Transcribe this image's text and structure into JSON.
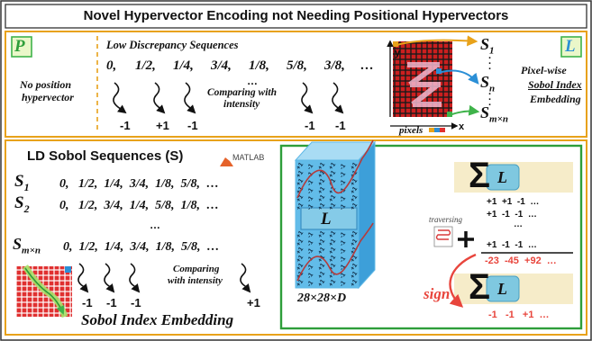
{
  "title": "Novel Hypervector Encoding not Needing Positional Hypervectors",
  "top": {
    "p_badge": "P",
    "no_position": "No position",
    "hypervector": "hypervector",
    "ld_label": "Low Discrepancy Sequences",
    "sequence": [
      "0,",
      "1/2,",
      "1/4,",
      "3/4,",
      "1/8,",
      "5/8,",
      "3/8,",
      "…"
    ],
    "ellipsis_mid": "…",
    "comparing_1": "Comparing with",
    "comparing_2": "intensity",
    "signs": [
      "-1",
      "+1",
      "-1",
      "-1",
      "-1"
    ],
    "y_axis": "y",
    "x_axis": "x",
    "pixels_label": "pixels",
    "s1": "S",
    "s1_sub": "1",
    "sn": "S",
    "sn_sub": "n",
    "smn": "S",
    "smn_sub": "m×n",
    "l_badge": "L",
    "pixelwise_1": "Pixel-wise",
    "pixelwise_2": "Sobol Index",
    "pixelwise_3": "Embedding"
  },
  "bottom_left": {
    "heading": "LD Sobol Sequences (S)",
    "matlab": "MATLAB",
    "rows": [
      {
        "label": "S",
        "sub": "1",
        "values": "0,   1/2,  1/4,  3/4,  1/8,  5/8,  …"
      },
      {
        "label": "S",
        "sub": "2",
        "values": "0,   1/2,  3/4,  1/4,  5/8,  1/8,  …"
      },
      {
        "label": "S",
        "sub": "m×n",
        "values": "0,  1/2,  1/4,  3/4,  1/8,  5/8,  …"
      }
    ],
    "dots": "…",
    "comparing_1": "Comparing",
    "comparing_2": "with intensity",
    "signs": [
      "-1",
      "-1",
      "-1",
      "+1"
    ],
    "embedding": "Sobol Index Embedding"
  },
  "bottom_right": {
    "cube_label": "L",
    "cube_dims": "28×28×D",
    "traversing": "traversing",
    "l_box": "L",
    "row1": "+1  +1  -1  …",
    "row2": "+1  -1  -1  …",
    "row_dots": "…",
    "row3": "+1  -1  -1  …",
    "sums": "-23  -45  +92  …",
    "sign": "sign",
    "result": "-1   -1   +1  …"
  },
  "colors": {
    "accent_orange": "#e8a21a",
    "frame_green": "#2e9e3a",
    "l_blue": "#7fc8e0",
    "cube_blue": "#5fb8e6",
    "sign_red": "#e8453c",
    "grid_red": "#cc1f1f"
  }
}
